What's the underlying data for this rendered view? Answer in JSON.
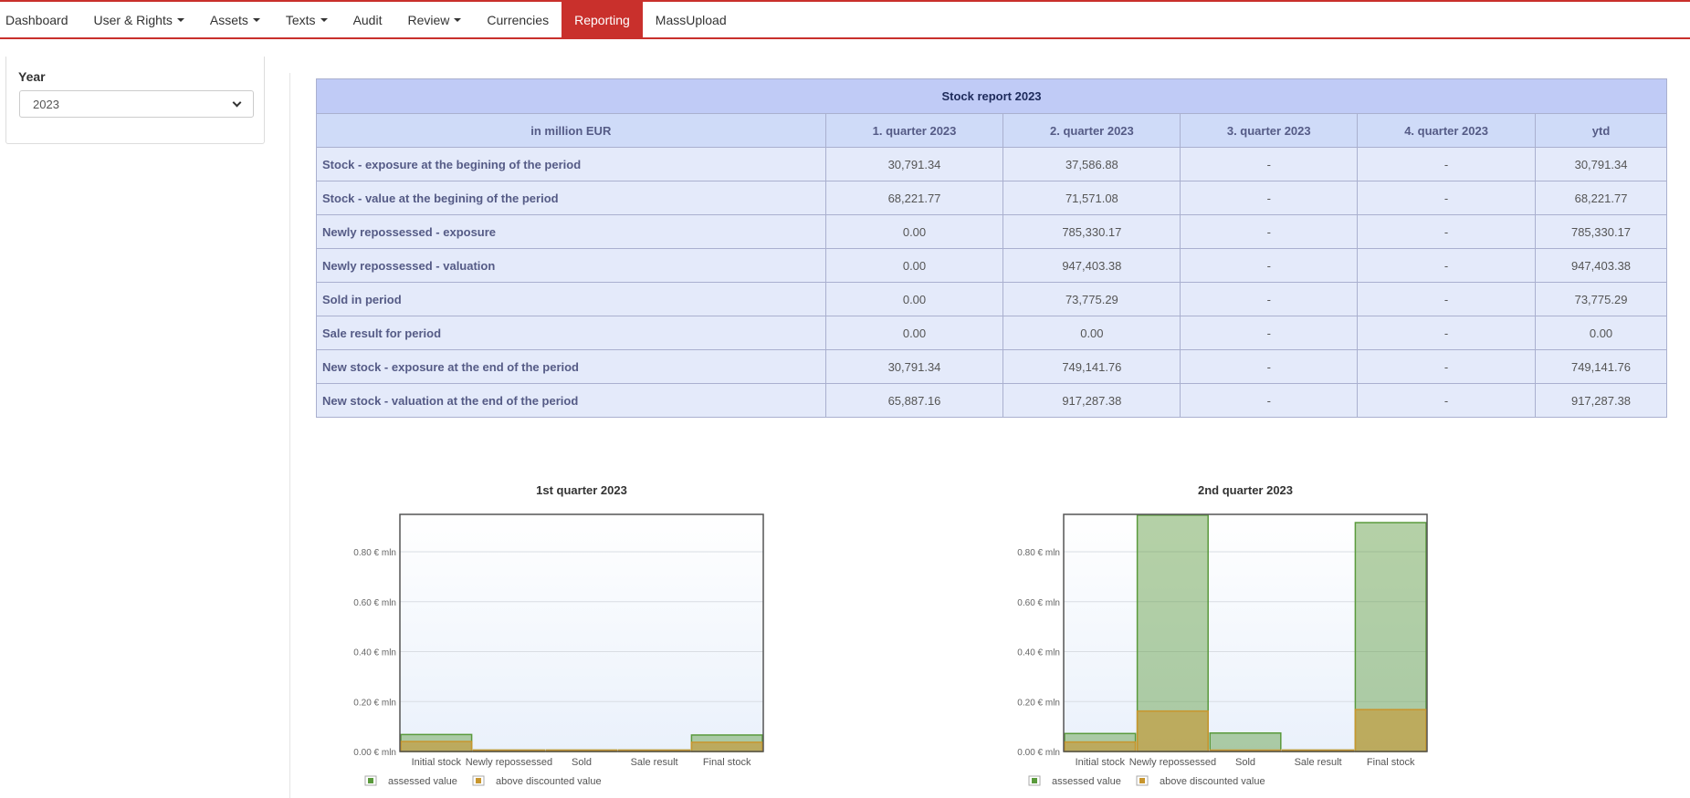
{
  "nav": {
    "items": [
      {
        "label": "Dashboard",
        "dropdown": false,
        "active": false
      },
      {
        "label": "User & Rights",
        "dropdown": true,
        "active": false
      },
      {
        "label": "Assets",
        "dropdown": true,
        "active": false
      },
      {
        "label": "Texts",
        "dropdown": true,
        "active": false
      },
      {
        "label": "Audit",
        "dropdown": false,
        "active": false
      },
      {
        "label": "Review",
        "dropdown": true,
        "active": false
      },
      {
        "label": "Currencies",
        "dropdown": false,
        "active": false
      },
      {
        "label": "Reporting",
        "dropdown": false,
        "active": true
      },
      {
        "label": "MassUpload",
        "dropdown": false,
        "active": false
      }
    ],
    "accent": "#c9302c"
  },
  "filter": {
    "year_label": "Year",
    "year_value": "2023"
  },
  "table": {
    "title": "Stock report 2023",
    "headers": [
      "in million EUR",
      "1. quarter 2023",
      "2. quarter 2023",
      "3. quarter 2023",
      "4. quarter 2023",
      "ytd"
    ],
    "rows": [
      {
        "label": "Stock - exposure at the begining of the period",
        "values": [
          "30,791.34",
          "37,586.88",
          "-",
          "-",
          "30,791.34"
        ]
      },
      {
        "label": "Stock - value at the begining of the period",
        "values": [
          "68,221.77",
          "71,571.08",
          "-",
          "-",
          "68,221.77"
        ]
      },
      {
        "label": "Newly repossessed - exposure",
        "values": [
          "0.00",
          "785,330.17",
          "-",
          "-",
          "785,330.17"
        ]
      },
      {
        "label": "Newly repossessed - valuation",
        "values": [
          "0.00",
          "947,403.38",
          "-",
          "-",
          "947,403.38"
        ]
      },
      {
        "label": "Sold in period",
        "values": [
          "0.00",
          "73,775.29",
          "-",
          "-",
          "73,775.29"
        ]
      },
      {
        "label": "Sale result for period",
        "values": [
          "0.00",
          "0.00",
          "-",
          "-",
          "0.00"
        ]
      },
      {
        "label": "New stock - exposure at the end of the period",
        "values": [
          "30,791.34",
          "749,141.76",
          "-",
          "-",
          "749,141.76"
        ]
      },
      {
        "label": "New stock - valuation at the end of the period",
        "values": [
          "65,887.16",
          "917,287.38",
          "-",
          "-",
          "917,287.38"
        ]
      }
    ]
  },
  "chart_data": [
    {
      "type": "bar",
      "title": "1st quarter 2023",
      "categories": [
        "Initial stock",
        "Newly repossessed",
        "Sold",
        "Sale result",
        "Final stock"
      ],
      "ylim": [
        0,
        0.95
      ],
      "yticks": [
        0,
        0.2,
        0.4,
        0.6,
        0.8
      ],
      "ytick_labels": [
        "0.00 € mln",
        "0.20 € mln",
        "0.40 € mln",
        "0.60 € mln",
        "0.80 € mln"
      ],
      "grid": true,
      "legend_position": "bottom-left",
      "series": [
        {
          "name": "assessed value",
          "color": "#5a9a3c",
          "values": [
            0.068,
            0.0,
            0.0,
            0.0,
            0.066
          ]
        },
        {
          "name": "above discounted value",
          "color": "#c8962e",
          "values": [
            0.04,
            0.003,
            0.0,
            0.0,
            0.037
          ]
        }
      ]
    },
    {
      "type": "bar",
      "title": "2nd quarter 2023",
      "categories": [
        "Initial stock",
        "Newly repossessed",
        "Sold",
        "Sale result",
        "Final stock"
      ],
      "ylim": [
        0,
        0.95
      ],
      "yticks": [
        0,
        0.2,
        0.4,
        0.6,
        0.8
      ],
      "ytick_labels": [
        "0.00 € mln",
        "0.20 € mln",
        "0.40 € mln",
        "0.60 € mln",
        "0.80 € mln"
      ],
      "grid": true,
      "legend_position": "bottom-left",
      "series": [
        {
          "name": "assessed value",
          "color": "#5a9a3c",
          "values": [
            0.072,
            0.947,
            0.074,
            0.0,
            0.917
          ]
        },
        {
          "name": "above discounted value",
          "color": "#c8962e",
          "values": [
            0.038,
            0.162,
            0.0,
            0.0,
            0.168
          ]
        }
      ]
    }
  ]
}
